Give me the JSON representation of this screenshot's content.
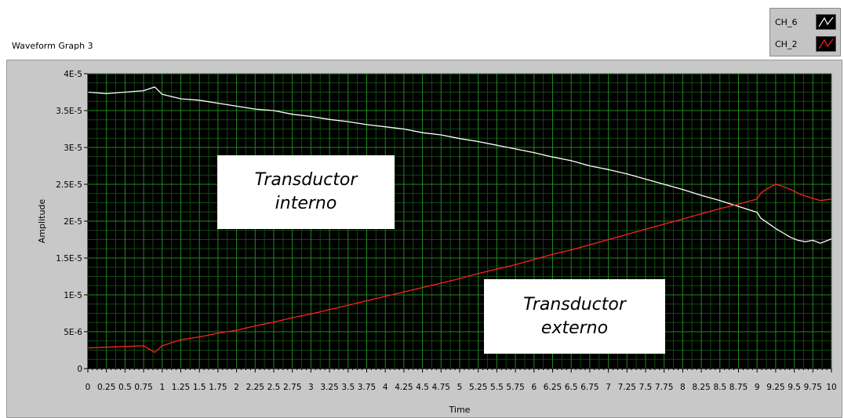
{
  "graph_label": "Waveform Graph 3",
  "legend": [
    {
      "name": "CH_6",
      "color": "#ffffff"
    },
    {
      "name": "CH_2",
      "color": "#ff2020"
    }
  ],
  "annotations": {
    "interno": [
      "Transductor",
      "interno"
    ],
    "externo": [
      "Transductor",
      "externo"
    ]
  },
  "chart_data": {
    "type": "line",
    "title": "",
    "xlabel": "Time",
    "ylabel": "Amplitude",
    "xlim": [
      0,
      10
    ],
    "ylim": [
      0,
      4e-05
    ],
    "x_ticks": [
      "0",
      "0.25",
      "0.5",
      "0.75",
      "1",
      "1.25",
      "1.5",
      "1.75",
      "2",
      "2.25",
      "2.5",
      "2.75",
      "3",
      "3.25",
      "3.5",
      "3.75",
      "4",
      "4.25",
      "4.5",
      "4.75",
      "5",
      "5.25",
      "5.5",
      "5.75",
      "6",
      "6.25",
      "6.5",
      "6.75",
      "7",
      "7.25",
      "7.5",
      "7.75",
      "8",
      "8.25",
      "8.5",
      "8.75",
      "9",
      "9.25",
      "9.5",
      "9.75",
      "10"
    ],
    "y_ticks": [
      {
        "value": 0,
        "label": "0"
      },
      {
        "value": 5e-06,
        "label": "5E-6"
      },
      {
        "value": 1e-05,
        "label": "1E-5"
      },
      {
        "value": 1.5e-05,
        "label": "1.5E-5"
      },
      {
        "value": 2e-05,
        "label": "2E-5"
      },
      {
        "value": 2.5e-05,
        "label": "2.5E-5"
      },
      {
        "value": 3e-05,
        "label": "3E-5"
      },
      {
        "value": 3.5e-05,
        "label": "3.5E-5"
      },
      {
        "value": 4e-05,
        "label": "4E-5"
      }
    ],
    "grid": true,
    "legend_position": "top-right",
    "series": [
      {
        "name": "CH_6",
        "color": "#ffffff",
        "x": [
          0,
          0.25,
          0.5,
          0.75,
          0.9,
          1,
          1.25,
          1.5,
          1.75,
          2,
          2.25,
          2.5,
          2.75,
          3,
          3.25,
          3.5,
          3.75,
          4,
          4.25,
          4.5,
          4.75,
          5,
          5.25,
          5.5,
          5.75,
          6,
          6.25,
          6.5,
          6.75,
          7,
          7.25,
          7.5,
          7.75,
          8,
          8.25,
          8.5,
          8.75,
          9,
          9.05,
          9.15,
          9.25,
          9.35,
          9.45,
          9.55,
          9.65,
          9.75,
          9.85,
          10
        ],
        "values": [
          3.75e-05,
          3.73e-05,
          3.75e-05,
          3.77e-05,
          3.82e-05,
          3.72e-05,
          3.66e-05,
          3.64e-05,
          3.6e-05,
          3.56e-05,
          3.52e-05,
          3.5e-05,
          3.45e-05,
          3.42e-05,
          3.38e-05,
          3.35e-05,
          3.31e-05,
          3.28e-05,
          3.25e-05,
          3.2e-05,
          3.17e-05,
          3.12e-05,
          3.08e-05,
          3.03e-05,
          2.98e-05,
          2.93e-05,
          2.87e-05,
          2.82e-05,
          2.75e-05,
          2.7e-05,
          2.64e-05,
          2.57e-05,
          2.5e-05,
          2.43e-05,
          2.35e-05,
          2.28e-05,
          2.2e-05,
          2.12e-05,
          2.04e-05,
          1.97e-05,
          1.9e-05,
          1.84e-05,
          1.78e-05,
          1.74e-05,
          1.72e-05,
          1.74e-05,
          1.7e-05,
          1.76e-05
        ]
      },
      {
        "name": "CH_2",
        "color": "#ff2020",
        "x": [
          0,
          0.25,
          0.5,
          0.75,
          0.9,
          1,
          1.25,
          1.5,
          1.75,
          2,
          2.25,
          2.5,
          2.75,
          3,
          3.25,
          3.5,
          3.75,
          4,
          4.25,
          4.5,
          4.75,
          5,
          5.25,
          5.5,
          5.75,
          6,
          6.25,
          6.5,
          6.75,
          7,
          7.25,
          7.5,
          7.75,
          8,
          8.25,
          8.5,
          8.75,
          9,
          9.05,
          9.15,
          9.25,
          9.35,
          9.45,
          9.55,
          9.65,
          9.75,
          9.85,
          10
        ],
        "values": [
          2.8e-06,
          2.9e-06,
          3e-06,
          3.1e-06,
          2.2e-06,
          3.1e-06,
          3.9e-06,
          4.3e-06,
          4.8e-06,
          5.2e-06,
          5.8e-06,
          6.3e-06,
          6.9e-06,
          7.4e-06,
          8e-06,
          8.6e-06,
          9.2e-06,
          9.8e-06,
          1.04e-05,
          1.1e-05,
          1.16e-05,
          1.22e-05,
          1.29e-05,
          1.35e-05,
          1.41e-05,
          1.48e-05,
          1.55e-05,
          1.61e-05,
          1.68e-05,
          1.75e-05,
          1.82e-05,
          1.89e-05,
          1.96e-05,
          2.03e-05,
          2.1e-05,
          2.17e-05,
          2.23e-05,
          2.3e-05,
          2.38e-05,
          2.45e-05,
          2.5e-05,
          2.47e-05,
          2.43e-05,
          2.38e-05,
          2.34e-05,
          2.31e-05,
          2.28e-05,
          2.3e-05
        ]
      }
    ]
  }
}
